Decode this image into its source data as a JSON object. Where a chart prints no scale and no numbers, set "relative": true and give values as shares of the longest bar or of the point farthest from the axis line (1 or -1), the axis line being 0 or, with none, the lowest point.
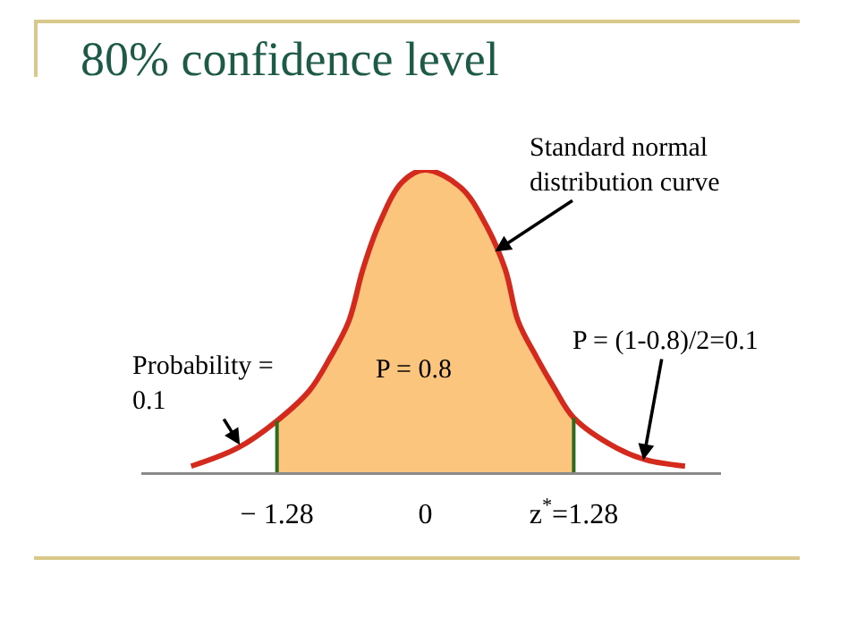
{
  "chart_data": {
    "type": "area",
    "title": "80% confidence level",
    "relative": true,
    "series": [
      {
        "color": "#fcc57e",
        "x": [
          -1.28,
          -1.0,
          -0.82,
          -0.66,
          -0.54,
          -0.4,
          -0.2,
          0,
          0.31,
          0.52,
          0.69,
          0.8,
          0.96,
          1.11,
          1.28
        ],
        "values": [
          0.17,
          0.27,
          0.38,
          0.5,
          0.67,
          0.82,
          0.96,
          1,
          0.94,
          0.82,
          0.67,
          0.5,
          0.38,
          0.28,
          0.18
        ]
      },
      {
        "type": "line",
        "color": "#d42a1e",
        "x": [
          -2.02,
          -1.62,
          -1.28,
          -1.0,
          -0.82,
          -0.66,
          -0.54,
          -0.4,
          -0.2,
          0,
          0.31,
          0.52,
          0.69,
          0.8,
          0.96,
          1.11,
          1.28,
          1.65,
          1.91,
          2.24
        ],
        "values": [
          0.02,
          0.08,
          0.17,
          0.27,
          0.38,
          0.5,
          0.67,
          0.82,
          0.96,
          1,
          0.94,
          0.82,
          0.67,
          0.5,
          0.38,
          0.28,
          0.18,
          0.08,
          0.04,
          0.02
        ]
      }
    ],
    "xlim": [
      -2.45,
      2.55
    ],
    "xticks": [
      {
        "value": -1.28,
        "label": "− 1.28"
      },
      0,
      {
        "value": 1.28,
        "label": "z$^{*}$=1.28"
      }
    ],
    "ref_lines": [
      {
        "axis": "x",
        "value": -1.28,
        "color": "#2e6b1e"
      },
      {
        "axis": "x",
        "value": 1.28,
        "color": "#2e6b1e"
      }
    ],
    "annotations": [
      {
        "text": "Standard normal\ndistribution curve",
        "x": 0.6,
        "y": 0.73
      },
      {
        "text": "Probability =\n0.1",
        "x": -1.6,
        "y": 0.09
      },
      {
        "text": "P = (1-0.8)/2=0.1",
        "x": 1.88,
        "y": 0.04
      },
      "P = 0.8"
    ]
  }
}
